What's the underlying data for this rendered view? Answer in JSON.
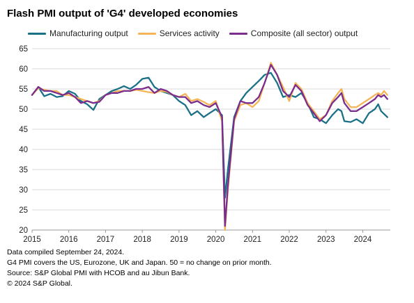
{
  "title": "Flash PMI output of 'G4' developed economies",
  "colors": {
    "manufacturing": "#1a7086",
    "services": "#f5b557",
    "composite": "#7b2d8e",
    "grid": "#d9d9d9",
    "axis": "#999999"
  },
  "notes": [
    "Data compiled September 24, 2024.",
    "G4 PMI covers the US, Eurozone, UK and Japan. 50 = no change on prior month.",
    "Source: S&P Global PMI with HCOB and au Jibun Bank.",
    "© 2024 S&P Global."
  ],
  "chart_data": {
    "type": "line",
    "title": "Flash PMI output of 'G4' developed economies",
    "xlabel": "",
    "ylabel": "",
    "ylim": [
      20,
      65
    ],
    "yticks": [
      20,
      25,
      30,
      35,
      40,
      45,
      50,
      55,
      60,
      65
    ],
    "xlim": [
      2015.0,
      2024.75
    ],
    "xtick_labels": [
      "2015",
      "2016",
      "2017",
      "2018",
      "2019",
      "2020",
      "2021",
      "2022",
      "2023",
      "2024"
    ],
    "grid": true,
    "legend_position": "top",
    "series": [
      {
        "name": "Manufacturing output",
        "color": "#1a7086",
        "points": [
          [
            2015.0,
            53.5
          ],
          [
            2015.17,
            55.5
          ],
          [
            2015.33,
            53.2
          ],
          [
            2015.5,
            53.8
          ],
          [
            2015.67,
            53.0
          ],
          [
            2015.83,
            53.2
          ],
          [
            2016.0,
            54.5
          ],
          [
            2016.17,
            53.8
          ],
          [
            2016.33,
            52.0
          ],
          [
            2016.5,
            51.2
          ],
          [
            2016.67,
            49.8
          ],
          [
            2016.83,
            52.5
          ],
          [
            2017.0,
            53.5
          ],
          [
            2017.17,
            54.5
          ],
          [
            2017.33,
            55.0
          ],
          [
            2017.5,
            55.7
          ],
          [
            2017.67,
            55.0
          ],
          [
            2017.83,
            56.0
          ],
          [
            2018.0,
            57.5
          ],
          [
            2018.17,
            57.8
          ],
          [
            2018.33,
            55.5
          ],
          [
            2018.5,
            54.5
          ],
          [
            2018.67,
            54.0
          ],
          [
            2018.83,
            53.5
          ],
          [
            2019.0,
            52.0
          ],
          [
            2019.17,
            51.0
          ],
          [
            2019.33,
            48.5
          ],
          [
            2019.5,
            49.5
          ],
          [
            2019.67,
            48.0
          ],
          [
            2019.83,
            49.0
          ],
          [
            2020.0,
            50.0
          ],
          [
            2020.17,
            48.5
          ],
          [
            2020.25,
            28.0
          ],
          [
            2020.33,
            35.0
          ],
          [
            2020.5,
            48.0
          ],
          [
            2020.67,
            52.0
          ],
          [
            2020.83,
            54.0
          ],
          [
            2021.0,
            55.5
          ],
          [
            2021.17,
            57.0
          ],
          [
            2021.33,
            58.5
          ],
          [
            2021.5,
            59.0
          ],
          [
            2021.67,
            56.5
          ],
          [
            2021.83,
            53.0
          ],
          [
            2022.0,
            53.5
          ],
          [
            2022.17,
            53.0
          ],
          [
            2022.33,
            54.0
          ],
          [
            2022.5,
            51.5
          ],
          [
            2022.67,
            48.0
          ],
          [
            2022.83,
            47.5
          ],
          [
            2023.0,
            46.5
          ],
          [
            2023.17,
            48.5
          ],
          [
            2023.33,
            50.0
          ],
          [
            2023.42,
            49.5
          ],
          [
            2023.5,
            47.0
          ],
          [
            2023.67,
            46.8
          ],
          [
            2023.83,
            47.5
          ],
          [
            2024.0,
            46.5
          ],
          [
            2024.17,
            49.0
          ],
          [
            2024.33,
            50.0
          ],
          [
            2024.42,
            51.2
          ],
          [
            2024.5,
            49.5
          ],
          [
            2024.67,
            48.0
          ]
        ]
      },
      {
        "name": "Services activity",
        "color": "#f5b557",
        "points": [
          [
            2015.0,
            53.5
          ],
          [
            2015.17,
            55.2
          ],
          [
            2015.33,
            54.8
          ],
          [
            2015.5,
            54.5
          ],
          [
            2015.67,
            54.5
          ],
          [
            2015.83,
            53.5
          ],
          [
            2016.0,
            53.5
          ],
          [
            2016.17,
            53.0
          ],
          [
            2016.33,
            52.5
          ],
          [
            2016.5,
            52.0
          ],
          [
            2016.67,
            51.5
          ],
          [
            2016.83,
            52.0
          ],
          [
            2017.0,
            53.5
          ],
          [
            2017.17,
            54.0
          ],
          [
            2017.33,
            54.5
          ],
          [
            2017.5,
            54.5
          ],
          [
            2017.67,
            54.5
          ],
          [
            2017.83,
            54.8
          ],
          [
            2018.0,
            54.5
          ],
          [
            2018.17,
            54.2
          ],
          [
            2018.33,
            54.0
          ],
          [
            2018.5,
            54.5
          ],
          [
            2018.67,
            54.3
          ],
          [
            2018.83,
            53.5
          ],
          [
            2019.0,
            53.0
          ],
          [
            2019.17,
            53.8
          ],
          [
            2019.33,
            52.0
          ],
          [
            2019.5,
            52.5
          ],
          [
            2019.67,
            51.8
          ],
          [
            2019.83,
            51.0
          ],
          [
            2020.0,
            52.0
          ],
          [
            2020.17,
            47.0
          ],
          [
            2020.25,
            20.0
          ],
          [
            2020.33,
            30.0
          ],
          [
            2020.5,
            47.0
          ],
          [
            2020.67,
            51.0
          ],
          [
            2020.83,
            51.5
          ],
          [
            2021.0,
            50.5
          ],
          [
            2021.17,
            52.0
          ],
          [
            2021.33,
            56.5
          ],
          [
            2021.5,
            61.5
          ],
          [
            2021.67,
            58.5
          ],
          [
            2021.83,
            55.5
          ],
          [
            2022.0,
            52.0
          ],
          [
            2022.17,
            56.5
          ],
          [
            2022.33,
            55.0
          ],
          [
            2022.5,
            51.5
          ],
          [
            2022.67,
            49.5
          ],
          [
            2022.83,
            47.5
          ],
          [
            2023.0,
            48.5
          ],
          [
            2023.17,
            52.0
          ],
          [
            2023.33,
            54.0
          ],
          [
            2023.42,
            55.0
          ],
          [
            2023.5,
            52.5
          ],
          [
            2023.67,
            50.5
          ],
          [
            2023.83,
            50.5
          ],
          [
            2024.0,
            51.5
          ],
          [
            2024.17,
            52.5
          ],
          [
            2024.33,
            53.5
          ],
          [
            2024.42,
            54.0
          ],
          [
            2024.5,
            53.5
          ],
          [
            2024.58,
            54.5
          ],
          [
            2024.67,
            53.5
          ]
        ]
      },
      {
        "name": "Composite (all sector) output",
        "color": "#7b2d8e",
        "points": [
          [
            2015.0,
            53.5
          ],
          [
            2015.17,
            55.5
          ],
          [
            2015.33,
            54.5
          ],
          [
            2015.5,
            54.5
          ],
          [
            2015.67,
            54.0
          ],
          [
            2015.83,
            53.5
          ],
          [
            2016.0,
            54.0
          ],
          [
            2016.17,
            53.0
          ],
          [
            2016.33,
            51.5
          ],
          [
            2016.5,
            52.0
          ],
          [
            2016.67,
            51.5
          ],
          [
            2016.83,
            51.8
          ],
          [
            2017.0,
            53.5
          ],
          [
            2017.17,
            54.0
          ],
          [
            2017.33,
            54.0
          ],
          [
            2017.5,
            54.5
          ],
          [
            2017.67,
            54.5
          ],
          [
            2017.83,
            55.0
          ],
          [
            2018.0,
            55.0
          ],
          [
            2018.17,
            55.5
          ],
          [
            2018.33,
            54.0
          ],
          [
            2018.5,
            55.0
          ],
          [
            2018.67,
            54.5
          ],
          [
            2018.83,
            53.5
          ],
          [
            2019.0,
            53.0
          ],
          [
            2019.17,
            53.0
          ],
          [
            2019.33,
            51.5
          ],
          [
            2019.5,
            52.0
          ],
          [
            2019.67,
            51.0
          ],
          [
            2019.83,
            50.5
          ],
          [
            2020.0,
            51.5
          ],
          [
            2020.17,
            48.0
          ],
          [
            2020.25,
            21.0
          ],
          [
            2020.33,
            31.0
          ],
          [
            2020.5,
            47.5
          ],
          [
            2020.67,
            52.0
          ],
          [
            2020.83,
            51.5
          ],
          [
            2021.0,
            51.5
          ],
          [
            2021.17,
            53.0
          ],
          [
            2021.33,
            56.5
          ],
          [
            2021.5,
            61.0
          ],
          [
            2021.67,
            58.5
          ],
          [
            2021.83,
            54.5
          ],
          [
            2022.0,
            53.0
          ],
          [
            2022.17,
            56.0
          ],
          [
            2022.33,
            54.5
          ],
          [
            2022.5,
            51.0
          ],
          [
            2022.67,
            49.0
          ],
          [
            2022.83,
            47.0
          ],
          [
            2023.0,
            48.5
          ],
          [
            2023.17,
            51.5
          ],
          [
            2023.33,
            53.0
          ],
          [
            2023.42,
            54.0
          ],
          [
            2023.5,
            51.5
          ],
          [
            2023.67,
            49.5
          ],
          [
            2023.83,
            49.5
          ],
          [
            2024.0,
            50.5
          ],
          [
            2024.17,
            51.5
          ],
          [
            2024.33,
            52.5
          ],
          [
            2024.42,
            53.5
          ],
          [
            2024.5,
            53.0
          ],
          [
            2024.58,
            53.5
          ],
          [
            2024.67,
            52.5
          ]
        ]
      }
    ]
  }
}
